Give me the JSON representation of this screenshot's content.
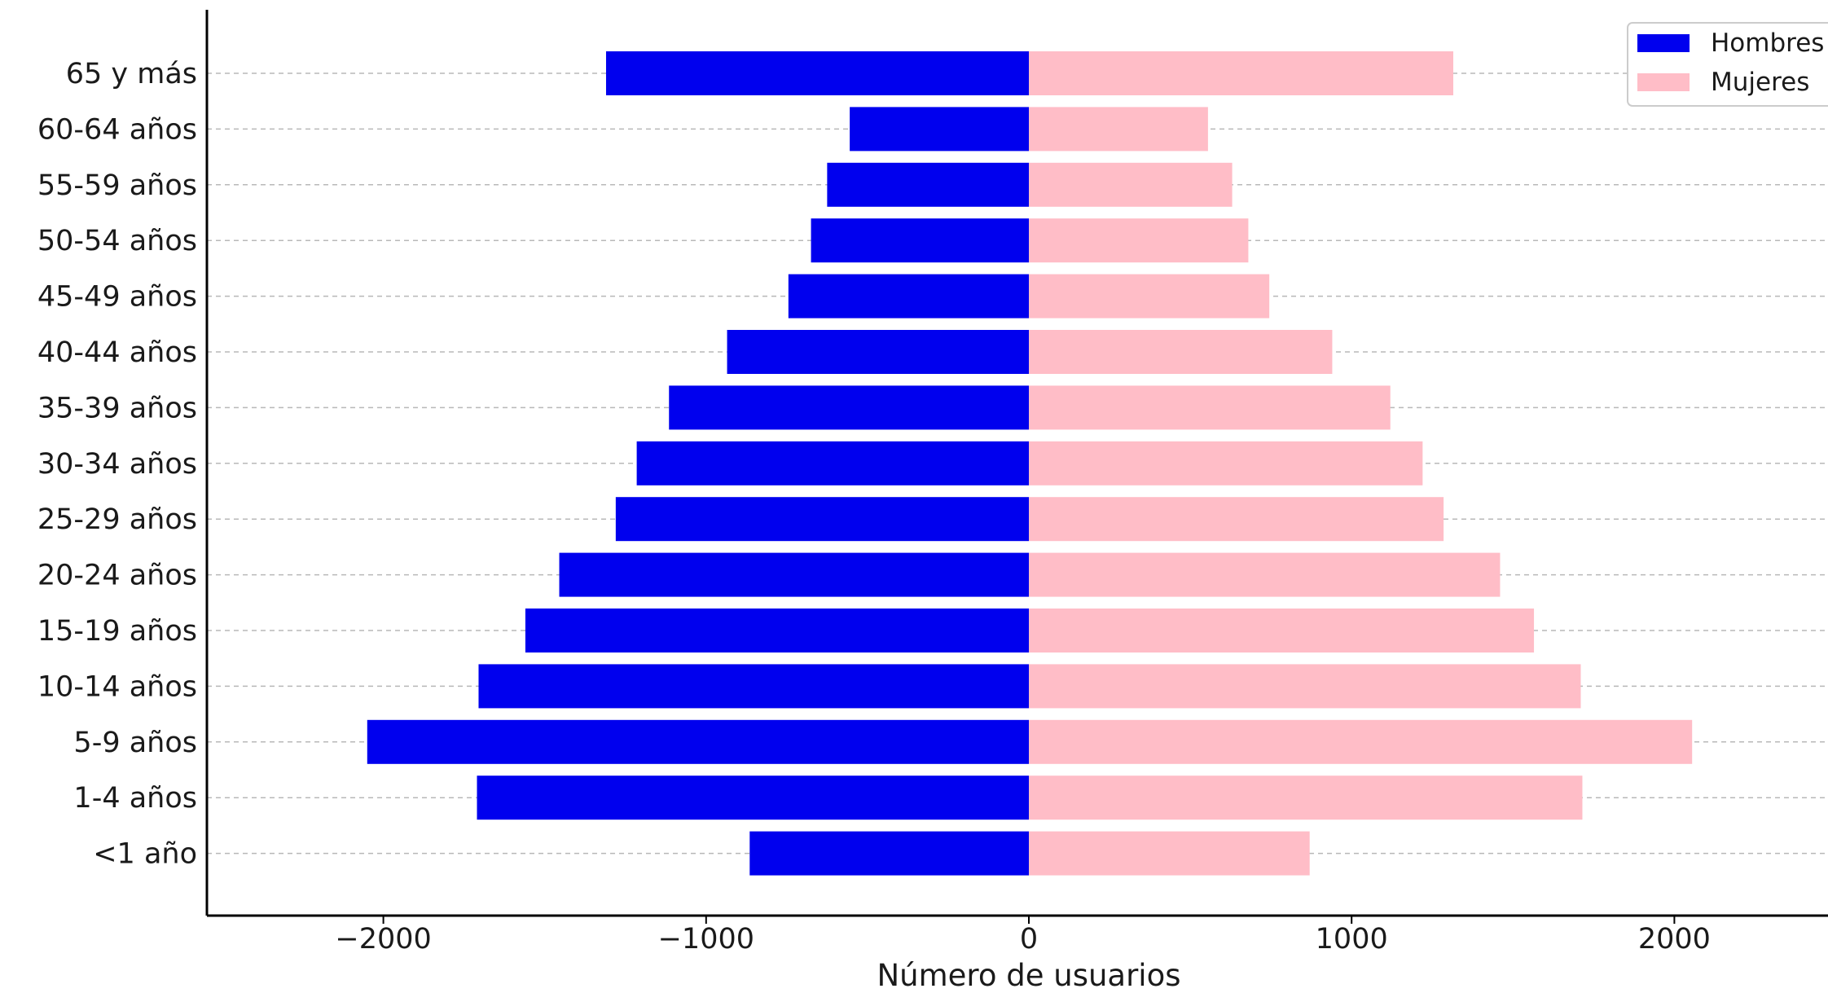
{
  "chart_data": {
    "type": "bar",
    "orientation": "horizontal",
    "title": "",
    "xlabel": "Número de usuarios",
    "ylabel": "",
    "xlim": [
      -2550,
      2500
    ],
    "xticks": [
      -2000,
      -1000,
      0,
      1000,
      2000
    ],
    "xtick_labels": [
      "−2000",
      "−1000",
      "0",
      "1000",
      "2000"
    ],
    "categories": [
      "65 y más",
      "60-64 años",
      "55-59 años",
      "50-54 años",
      "45-49 años",
      "40-44 años",
      "35-39 años",
      "30-34 años",
      "25-29 años",
      "20-24 años",
      "15-19 años",
      "10-14 años",
      "5-9 años",
      "1-4 años",
      "<1 año"
    ],
    "grid": "horizontal dashed",
    "legend_position": "top-right",
    "series": [
      {
        "name": "Hombres",
        "color": "#0000ee",
        "values": [
          -1310,
          -555,
          -625,
          -675,
          -745,
          -935,
          -1115,
          -1215,
          -1280,
          -1455,
          -1560,
          -1705,
          -2050,
          -1710,
          -865
        ]
      },
      {
        "name": "Mujeres",
        "color": "#ffbdc7",
        "values": [
          1315,
          555,
          630,
          680,
          745,
          940,
          1120,
          1220,
          1285,
          1460,
          1565,
          1710,
          2055,
          1715,
          870
        ]
      }
    ]
  }
}
